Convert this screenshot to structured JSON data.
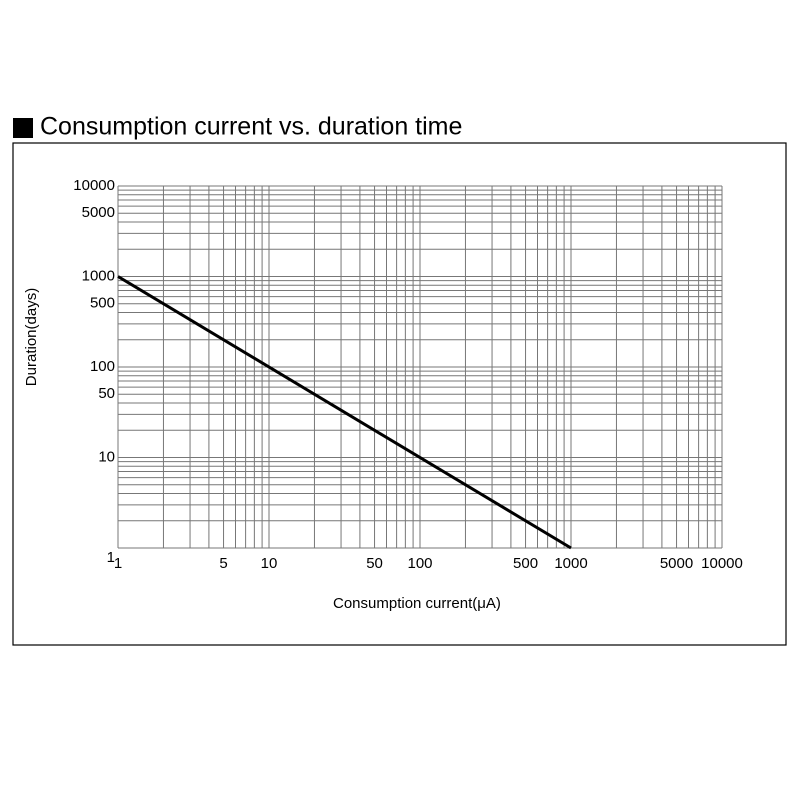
{
  "chart_data": {
    "type": "line",
    "title": "Consumption current vs. duration time",
    "x_label": "Consumption current(μA)",
    "y_label": "Duration(days)",
    "xscale": "log",
    "yscale": "log",
    "xlim": [
      1,
      10000
    ],
    "ylim": [
      1,
      10000
    ],
    "xticks": [
      1,
      5,
      10,
      50,
      100,
      500,
      1000,
      5000,
      10000
    ],
    "yticks": [
      1,
      10,
      50,
      100,
      500,
      1000,
      5000,
      10000
    ],
    "grid": true,
    "xgrid": [
      1,
      2,
      3,
      4,
      5,
      6,
      7,
      8,
      9,
      10,
      20,
      30,
      40,
      50,
      60,
      70,
      80,
      90,
      100,
      200,
      300,
      400,
      500,
      600,
      700,
      800,
      900,
      1000,
      2000,
      3000,
      4000,
      5000,
      6000,
      7000,
      8000,
      9000,
      10000
    ],
    "ygrid": [
      1,
      2,
      3,
      4,
      5,
      6,
      7,
      8,
      9,
      10,
      20,
      30,
      40,
      50,
      60,
      70,
      80,
      90,
      100,
      200,
      300,
      400,
      500,
      600,
      700,
      800,
      900,
      1000,
      2000,
      3000,
      4000,
      5000,
      6000,
      7000,
      8000,
      9000,
      10000
    ],
    "series": [
      {
        "color": "#000000",
        "x": [
          1,
          1000
        ],
        "values": [
          1000,
          1
        ]
      }
    ]
  }
}
